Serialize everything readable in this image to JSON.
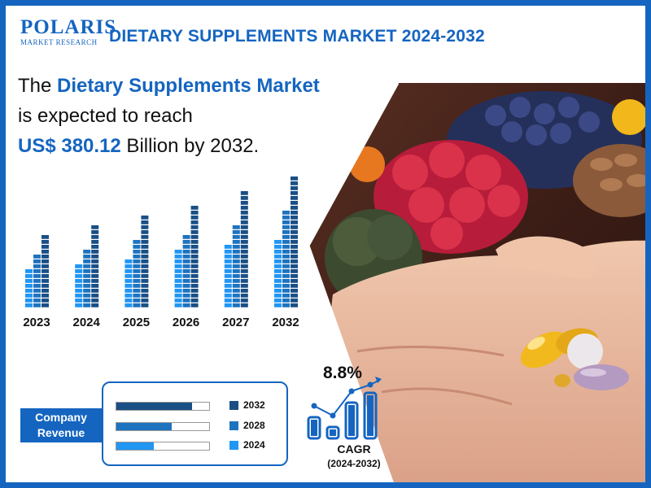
{
  "brand": {
    "name": "POLARIS",
    "sub": "MARKET RESEARCH"
  },
  "header": {
    "title": "DIETARY SUPPLEMENTS MARKET 2024-2032"
  },
  "headline": {
    "p1": "The ",
    "accent1": "Dietary Supplements Market",
    "line2": "is expected to reach",
    "accent2": "US$ 380.12",
    "p3": " Billion by 2032."
  },
  "cagr": {
    "value": "8.8%",
    "label": "CAGR",
    "range": "(2024-2032)"
  },
  "revenue": {
    "tag_line1": "Company",
    "tag_line2": "Revenue"
  },
  "colors": {
    "brand_blue": "#1565c0",
    "dark_blue": "#1a4f86",
    "mid_blue": "#1e73be",
    "light_blue": "#2196f3",
    "bar_track": "#ffffff"
  },
  "chart_data": [
    {
      "type": "bar",
      "categories": [
        "2023",
        "2024",
        "2025",
        "2026",
        "2027",
        "2032"
      ],
      "series": [
        {
          "values": [
            7.2,
            8.0,
            9.0,
            10.5,
            11.2,
            12.5
          ]
        },
        {
          "values": [
            10.0,
            11.0,
            12.0,
            13.5,
            15.0,
            17.5
          ]
        },
        {
          "values": [
            13.5,
            14.7,
            16.3,
            18.5,
            20.8,
            23.5
          ]
        }
      ],
      "title": "",
      "xlabel": "",
      "ylabel": "",
      "ylim": [
        0,
        24
      ],
      "grid": false
    },
    {
      "type": "bar",
      "orientation": "horizontal",
      "categories": [
        "2032",
        "2028",
        "2024"
      ],
      "values": [
        82,
        60,
        40
      ],
      "ylim": [
        0,
        100
      ],
      "title": "",
      "legend": "right"
    },
    {
      "type": "bar",
      "categories": [
        "1",
        "2",
        "3",
        "4"
      ],
      "values": [
        26,
        14,
        44,
        56
      ],
      "trend": [
        40,
        28,
        58,
        66
      ],
      "ylim": [
        0,
        70
      ],
      "title": ""
    }
  ]
}
